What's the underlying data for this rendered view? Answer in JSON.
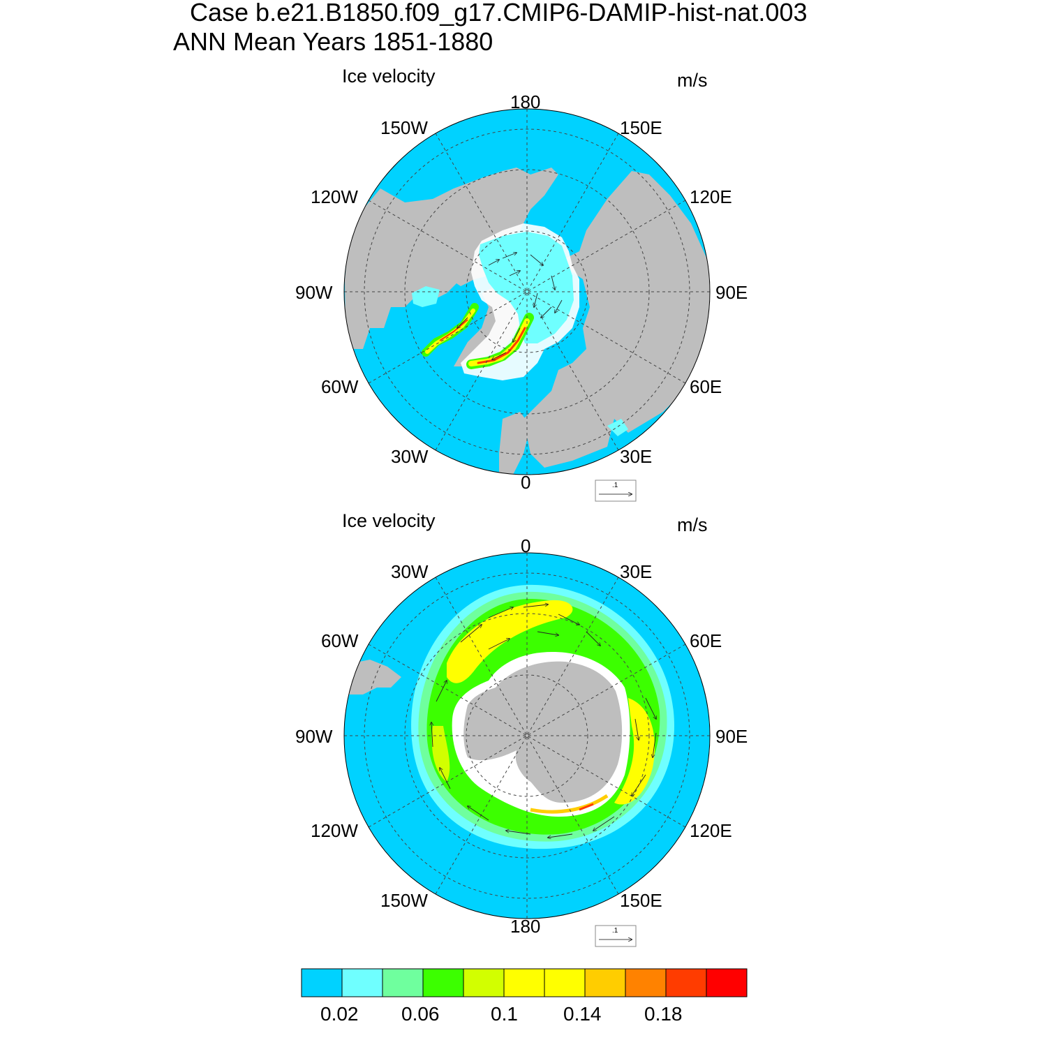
{
  "header": {
    "line1": "Case b.e21.B1850.f09_g17.CMIP6-DAMIP-hist-nat.003",
    "line2": "ANN Mean   Years 1851-1880"
  },
  "colors": {
    "ocean": "#00d2ff",
    "land": "#bebebe",
    "white": "#ffffff"
  },
  "panels": [
    {
      "id": "north",
      "hemisphere": "north",
      "left_label": "Ice velocity",
      "right_label": "m/s",
      "lon_labels": [
        "180",
        "150E",
        "120E",
        "90E",
        "60E",
        "30E",
        "0",
        "30W",
        "60W",
        "90W",
        "120W",
        "150W"
      ],
      "ref_vector": ".1"
    },
    {
      "id": "south",
      "hemisphere": "south",
      "left_label": "Ice velocity",
      "right_label": "m/s",
      "lon_labels": [
        "0",
        "30E",
        "60E",
        "90E",
        "120E",
        "150E",
        "180",
        "150W",
        "120W",
        "90W",
        "60W",
        "30W"
      ],
      "ref_vector": ".1"
    }
  ],
  "colorbar": {
    "colors": [
      "#00d2ff",
      "#6fffff",
      "#6fff9e",
      "#3cff00",
      "#d2ff00",
      "#ffff00",
      "#ffff00",
      "#ffcd00",
      "#ff8200",
      "#ff3c00",
      "#ff0000"
    ],
    "tick_labels": [
      "0.02",
      "0.06",
      "0.1",
      "0.14",
      "0.18"
    ],
    "tick_edges": [
      1,
      3,
      5,
      7,
      9
    ]
  },
  "chart_data": {
    "type": "map",
    "title": "Case b.e21.B1850.f09_g17.CMIP6-DAMIP-hist-nat.003",
    "subtitle": "ANN Mean   Years 1851-1880",
    "variable": "Ice velocity",
    "units": "m/s",
    "projection": "polar stereographic",
    "contour_levels": [
      0.02,
      0.04,
      0.06,
      0.08,
      0.1,
      0.12,
      0.14,
      0.16,
      0.18,
      0.2
    ],
    "reference_vector": ".1"
  }
}
